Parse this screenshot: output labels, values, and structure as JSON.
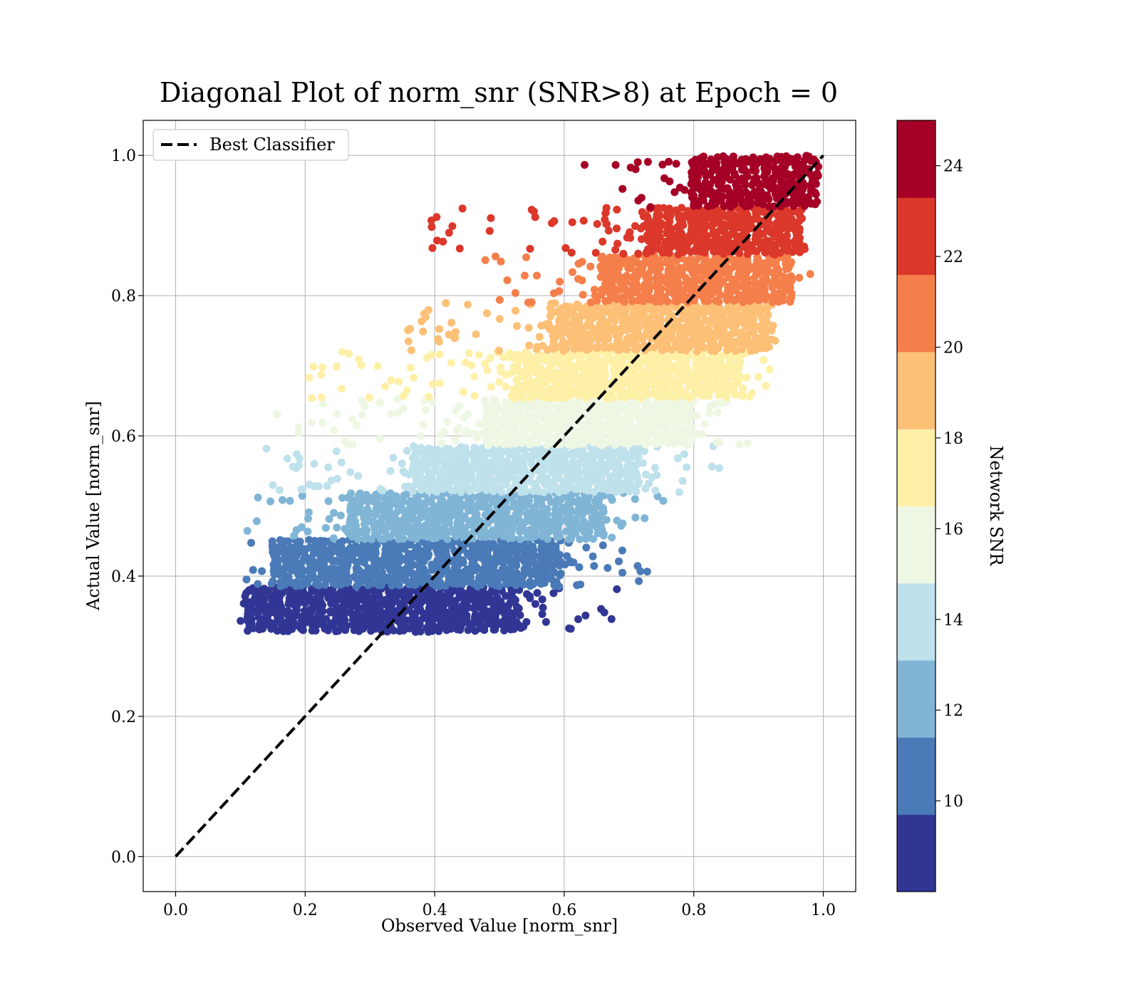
{
  "chart_data": {
    "type": "scatter",
    "title": "Diagonal Plot of norm_snr (SNR>8) at Epoch = 0",
    "xlabel": "Observed Value [norm_snr]",
    "ylabel": "Actual Value [norm_snr]",
    "xlim": [
      -0.05,
      1.05
    ],
    "ylim": [
      -0.05,
      1.05
    ],
    "xticks": [
      "0.0",
      "0.2",
      "0.4",
      "0.6",
      "0.8",
      "1.0"
    ],
    "yticks": [
      "0.0",
      "0.2",
      "0.4",
      "0.6",
      "0.8",
      "1.0"
    ],
    "grid": true,
    "legend": {
      "placement": "upper-left",
      "entries": [
        "Best Classifier"
      ]
    },
    "reference_line": {
      "name": "Best Classifier",
      "style": "dashed",
      "color": "#000000",
      "x": [
        0,
        1
      ],
      "y": [
        0,
        1
      ]
    },
    "colorbar": {
      "label": "Network SNR",
      "range": [
        8,
        25
      ],
      "ticks": [
        "10",
        "12",
        "14",
        "16",
        "18",
        "20",
        "22",
        "24"
      ],
      "colormap": "RdYlBu_r",
      "colors": [
        "#313695",
        "#4575b4",
        "#74add1",
        "#abd9e9",
        "#e0f3f8",
        "#ffffbf",
        "#fee090",
        "#fdae61",
        "#f46d43",
        "#d73027",
        "#a50026"
      ]
    },
    "bands": [
      {
        "snr": 8.85,
        "color": "#313695",
        "y": [
          0.32,
          0.385
        ],
        "x_core": [
          0.11,
          0.53
        ],
        "x_full": [
          0.09,
          0.69
        ]
      },
      {
        "snr": 10.55,
        "color": "#4a7ab7",
        "y": [
          0.385,
          0.452
        ],
        "x_core": [
          0.15,
          0.6
        ],
        "x_full": [
          0.1,
          0.74
        ]
      },
      {
        "snr": 12.25,
        "color": "#80b5d6",
        "y": [
          0.452,
          0.519
        ],
        "x_core": [
          0.27,
          0.66
        ],
        "x_full": [
          0.11,
          0.76
        ]
      },
      {
        "snr": 13.95,
        "color": "#bfe1ec",
        "y": [
          0.519,
          0.586
        ],
        "x_core": [
          0.37,
          0.72
        ],
        "x_full": [
          0.14,
          0.84
        ]
      },
      {
        "snr": 15.65,
        "color": "#eef7e3",
        "y": [
          0.586,
          0.653
        ],
        "x_core": [
          0.48,
          0.8
        ],
        "x_full": [
          0.15,
          0.9
        ]
      },
      {
        "snr": 17.35,
        "color": "#fff0a8",
        "y": [
          0.653,
          0.72
        ],
        "x_core": [
          0.53,
          0.88
        ],
        "x_full": [
          0.17,
          0.93
        ]
      },
      {
        "snr": 19.05,
        "color": "#fdc077",
        "y": [
          0.72,
          0.79
        ],
        "x_core": [
          0.58,
          0.92
        ],
        "x_full": [
          0.35,
          0.95
        ]
      },
      {
        "snr": 20.75,
        "color": "#f57f4b",
        "y": [
          0.79,
          0.858
        ],
        "x_core": [
          0.66,
          0.95
        ],
        "x_full": [
          0.47,
          0.98
        ]
      },
      {
        "snr": 22.45,
        "color": "#db382b",
        "y": [
          0.858,
          0.926
        ],
        "x_core": [
          0.73,
          0.97
        ],
        "x_full": [
          0.39,
          0.98
        ]
      },
      {
        "snr": 24.15,
        "color": "#a50026",
        "y": [
          0.926,
          1.0
        ],
        "x_core": [
          0.8,
          0.99
        ],
        "x_full": [
          0.63,
          0.99
        ]
      }
    ]
  }
}
